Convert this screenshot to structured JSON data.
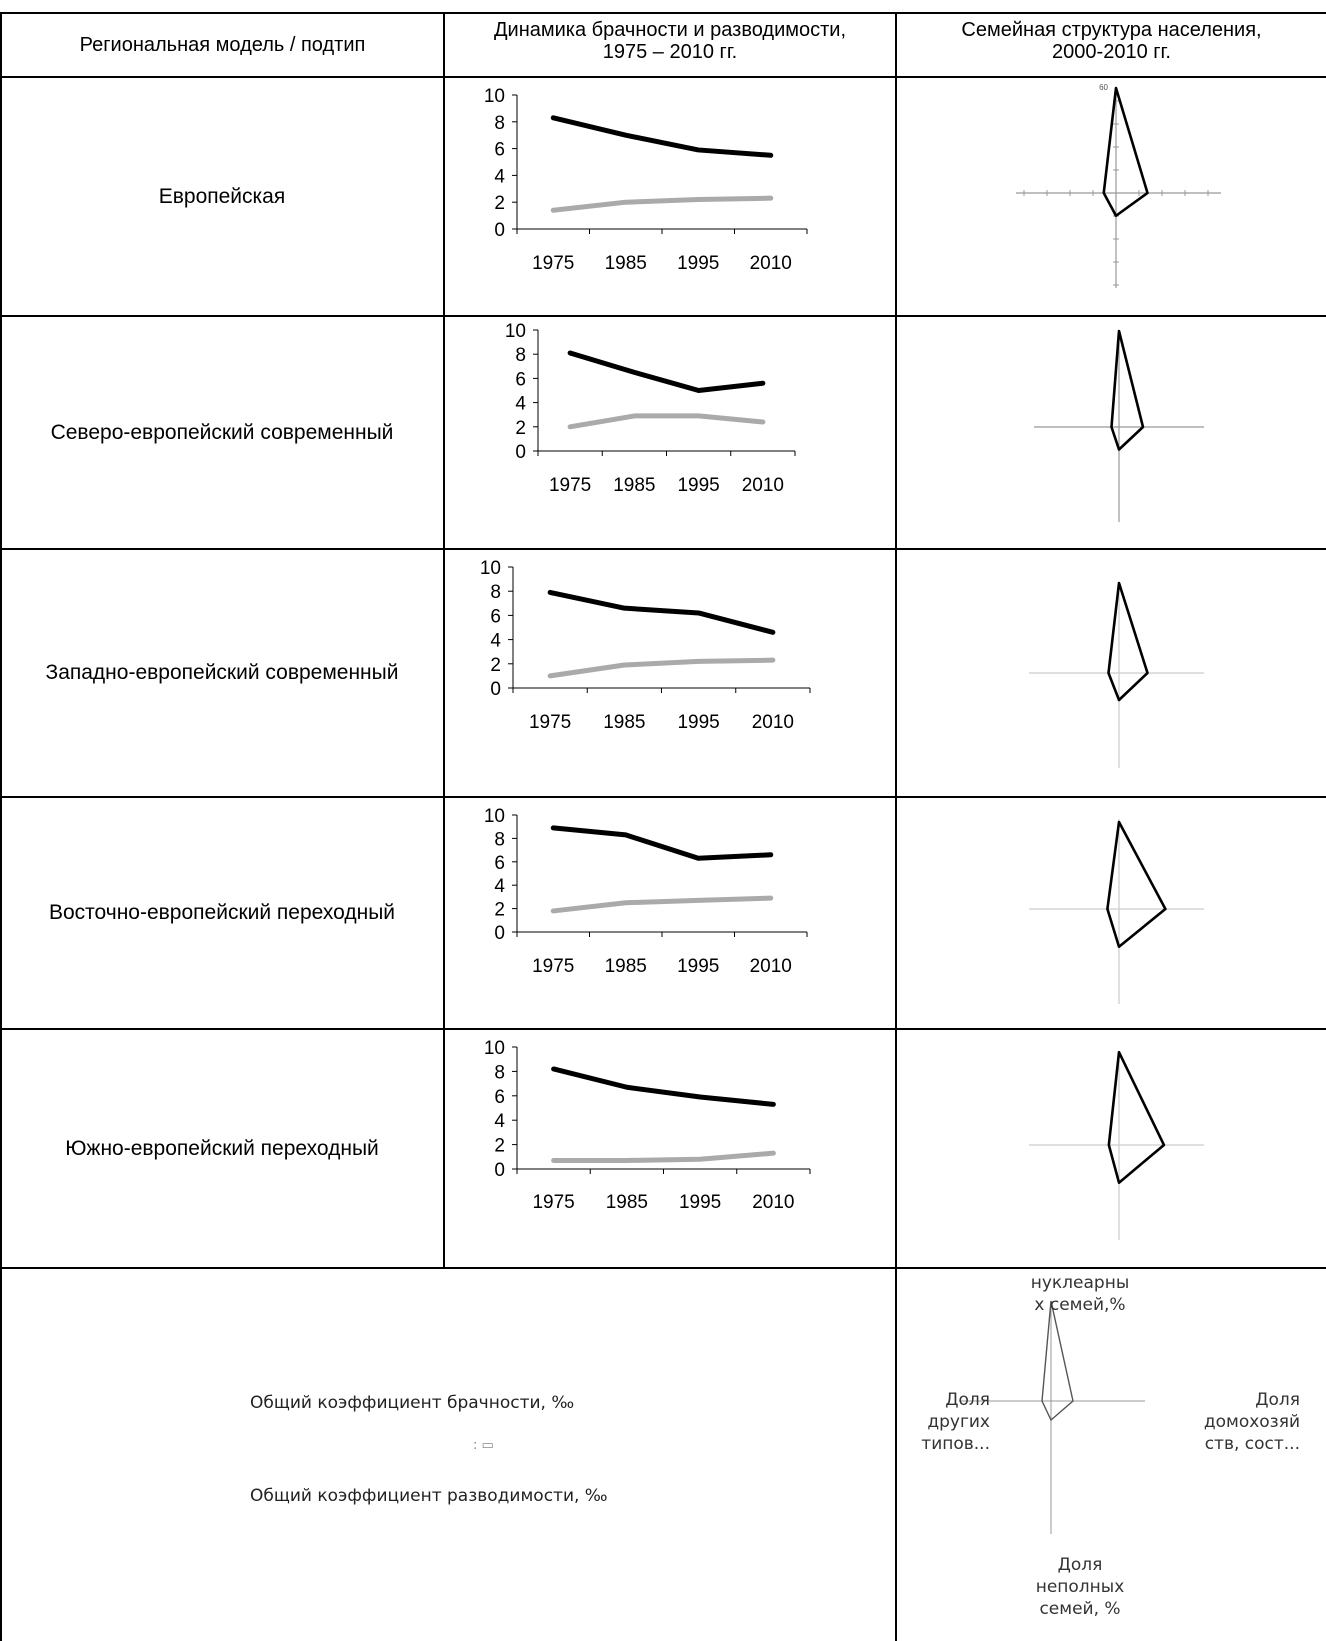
{
  "header": {
    "col1": "Региональная модель / подтип",
    "col2_line1": "Динамика брачности и разводимости,",
    "col2_line2": "1975 – 2010 гг.",
    "col3_line1": "Семейная структура населения,",
    "col3_line2": "2000-2010 гг."
  },
  "rows": [
    {
      "label": "Европейская"
    },
    {
      "label": "Северо-европейский современный"
    },
    {
      "label": "Западно-европейский современный"
    },
    {
      "label": "Восточно-европейский переходный"
    },
    {
      "label": "Южно-европейский переходный"
    }
  ],
  "legend": {
    "marriage": "Общий коэффициент брачности, ‰",
    "divorce": "Общий коэффициент разводимости, ‰"
  },
  "radar_axes": {
    "top": "нуклеарны\nх семей,%",
    "left": "Доля\nдругих\nтипов...",
    "right": "Доля\nдомохозяй\nств, сост...",
    "bottom": "Доля\nнеполных\nсемей, %"
  },
  "radar_tick_label": "60",
  "colors": {
    "marriage": "#000000",
    "divorce": "#aaaaaa"
  },
  "chart_data": [
    {
      "type": "line",
      "categories": [
        "1975",
        "1985",
        "1995",
        "2010"
      ],
      "ylim": [
        0,
        10
      ],
      "yticks": [
        0,
        2,
        4,
        6,
        8,
        10
      ],
      "series": [
        {
          "name": "Общий коэффициент брачности, ‰",
          "values": [
            8.3,
            7.0,
            5.9,
            5.5
          ]
        },
        {
          "name": "Общий коэффициент разводимости, ‰",
          "values": [
            1.4,
            2.0,
            2.2,
            2.3
          ]
        }
      ]
    },
    {
      "type": "line",
      "categories": [
        "1975",
        "1985",
        "1995",
        "2010"
      ],
      "ylim": [
        0,
        10
      ],
      "yticks": [
        0,
        2,
        4,
        6,
        8,
        10
      ],
      "series": [
        {
          "name": "Общий коэффициент брачности, ‰",
          "values": [
            8.1,
            6.5,
            5.0,
            5.6
          ]
        },
        {
          "name": "Общий коэффициент разводимости, ‰",
          "values": [
            2.0,
            2.9,
            2.9,
            2.4
          ]
        }
      ]
    },
    {
      "type": "line",
      "categories": [
        "1975",
        "1985",
        "1995",
        "2010"
      ],
      "ylim": [
        0,
        10
      ],
      "yticks": [
        0,
        2,
        4,
        6,
        8,
        10
      ],
      "series": [
        {
          "name": "Общий коэффициент брачности, ‰",
          "values": [
            7.9,
            6.6,
            6.2,
            4.6
          ]
        },
        {
          "name": "Общий коэффициент разводимости, ‰",
          "values": [
            1.0,
            1.9,
            2.2,
            2.3
          ]
        }
      ]
    },
    {
      "type": "line",
      "categories": [
        "1975",
        "1985",
        "1995",
        "2010"
      ],
      "ylim": [
        0,
        10
      ],
      "yticks": [
        0,
        2,
        4,
        6,
        8,
        10
      ],
      "series": [
        {
          "name": "Общий коэффициент брачности, ‰",
          "values": [
            8.9,
            8.3,
            6.3,
            6.6
          ]
        },
        {
          "name": "Общий коэффициент разводимости, ‰",
          "values": [
            1.8,
            2.5,
            2.7,
            2.9
          ]
        }
      ]
    },
    {
      "type": "line",
      "categories": [
        "1975",
        "1985",
        "1995",
        "2010"
      ],
      "ylim": [
        0,
        10
      ],
      "yticks": [
        0,
        2,
        4,
        6,
        8,
        10
      ],
      "series": [
        {
          "name": "Общий коэффициент брачности, ‰",
          "values": [
            8.2,
            6.7,
            5.9,
            5.3
          ]
        },
        {
          "name": "Общий коэффициент разводимости, ‰",
          "values": [
            0.7,
            0.7,
            0.8,
            1.3
          ]
        }
      ]
    },
    {
      "type": "radar",
      "axes": [
        "нуклеарных семей",
        "домохозяйств, сост...",
        "неполных семей",
        "других типов..."
      ],
      "values": [
        60,
        18,
        13,
        7
      ]
    },
    {
      "type": "radar",
      "axes": [
        "нуклеарных семей",
        "домохозяйств, сост...",
        "неполных семей",
        "других типов..."
      ],
      "values": [
        64,
        16,
        15,
        5
      ]
    },
    {
      "type": "radar",
      "axes": [
        "нуклеарных семей",
        "домохозяйств, сост...",
        "неполных семей",
        "других типов..."
      ],
      "values": [
        60,
        19,
        18,
        7
      ]
    },
    {
      "type": "radar",
      "axes": [
        "нуклеарных семей",
        "домохозяйств, сост...",
        "неполных семей",
        "других типов..."
      ],
      "values": [
        60,
        32,
        26,
        8
      ]
    },
    {
      "type": "radar",
      "axes": [
        "нуклеарных семей",
        "домохозяйств, сост...",
        "неполных семей",
        "других типов..."
      ],
      "values": [
        64,
        31,
        26,
        7
      ]
    }
  ]
}
